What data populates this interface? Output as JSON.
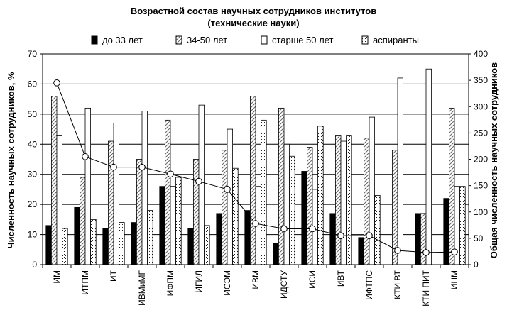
{
  "chart_data": {
    "type": "bar",
    "title": "Возрастной состав научных сотрудников институтов",
    "subtitle": "(технические науки)",
    "ylabel": "Численность научных сотрудников, %",
    "y2label": "Общая численность научных сотрудников",
    "ylim": [
      0,
      70
    ],
    "yticks": [
      0,
      10,
      20,
      30,
      40,
      50,
      60,
      70
    ],
    "y2lim": [
      0,
      400
    ],
    "y2ticks": [
      0,
      50,
      100,
      150,
      200,
      250,
      300,
      350,
      400
    ],
    "grid": true,
    "legend_position": "top",
    "categories": [
      "ИМ",
      "ИТПМ",
      "ИТ",
      "ИВМиМГ",
      "ИФПМ",
      "ИГИЛ",
      "ИСЭМ",
      "ИВМ",
      "ИДСТУ",
      "ИСИ",
      "ИВТ",
      "ИФТПС",
      "КТИ ВТ",
      "КТИ ПИТ",
      "ИНМ"
    ],
    "series": [
      {
        "name": "до 33 лет",
        "pattern": "solid",
        "values": [
          13,
          19,
          12,
          14,
          26,
          12,
          17,
          18,
          7,
          31,
          17,
          9,
          0,
          17,
          22
        ]
      },
      {
        "name": "34-50 лет",
        "pattern": "hatch",
        "values": [
          56,
          29,
          41,
          35,
          48,
          35,
          38,
          56,
          52,
          39,
          43,
          42,
          38,
          17,
          52
        ]
      },
      {
        "name": "старше 50 лет",
        "pattern": "outline",
        "values": [
          43,
          52,
          47,
          51,
          26,
          53,
          45,
          26,
          40,
          25,
          41,
          49,
          62,
          65,
          26
        ]
      },
      {
        "name": "аспиранты",
        "pattern": "dots",
        "values": [
          12,
          15,
          14,
          18,
          29,
          13,
          32,
          48,
          36,
          46,
          43,
          23,
          0,
          0,
          26
        ]
      }
    ],
    "line_series": {
      "axis": "secondary",
      "values": [
        345,
        205,
        185,
        185,
        172,
        158,
        143,
        78,
        68,
        68,
        55,
        55,
        27,
        23,
        24
      ]
    }
  }
}
